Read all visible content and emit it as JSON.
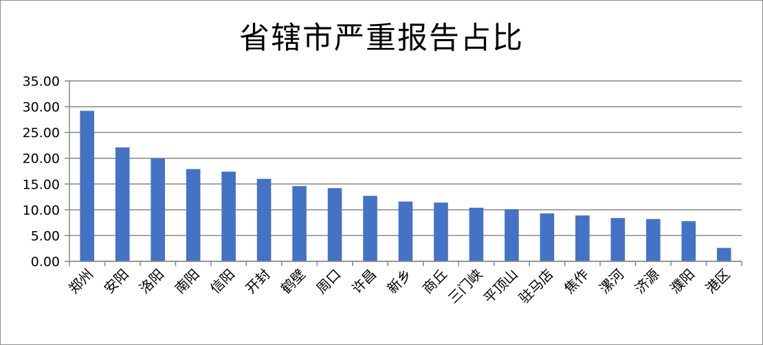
{
  "chart_data": {
    "type": "bar",
    "title": "省辖市严重报告占比",
    "xlabel": "",
    "ylabel": "",
    "categories": [
      "郑州",
      "安阳",
      "洛阳",
      "南阳",
      "信阳",
      "开封",
      "鹤壁",
      "周口",
      "许昌",
      "新乡",
      "商丘",
      "三门峡",
      "平顶山",
      "驻马店",
      "焦作",
      "漯河",
      "济源",
      "濮阳",
      "港区"
    ],
    "values": [
      29.2,
      22.1,
      19.9,
      17.9,
      17.4,
      16.0,
      14.6,
      14.2,
      12.7,
      11.6,
      11.4,
      10.4,
      10.1,
      9.3,
      8.9,
      8.4,
      8.2,
      7.8,
      2.6
    ],
    "ylim": [
      0,
      35
    ],
    "yticks": [
      "0.00",
      "5.00",
      "10.00",
      "15.00",
      "20.00",
      "25.00",
      "30.00",
      "35.00"
    ],
    "grid": true,
    "legend": "none",
    "colors": {
      "bar": "#4472c4",
      "grid": "#868686",
      "axis": "#868686"
    }
  }
}
